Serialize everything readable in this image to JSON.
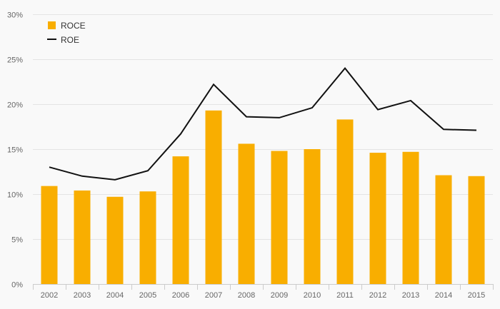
{
  "chart_data": {
    "type": "bar",
    "title": "",
    "xlabel": "",
    "ylabel": "",
    "categories": [
      "2002",
      "2003",
      "2004",
      "2005",
      "2006",
      "2007",
      "2008",
      "2009",
      "2010",
      "2011",
      "2012",
      "2013",
      "2014",
      "2015"
    ],
    "ylim": [
      0,
      30
    ],
    "yticks": [
      0,
      5,
      10,
      15,
      20,
      25,
      30
    ],
    "ytick_labels": [
      "0%",
      "5%",
      "10%",
      "15%",
      "20%",
      "25%",
      "30%"
    ],
    "grid": true,
    "legend_position": "top-left",
    "series": [
      {
        "name": "ROCE",
        "type": "bar",
        "color": "#f9ae00",
        "values": [
          10.9,
          10.4,
          9.7,
          10.3,
          14.2,
          19.3,
          15.6,
          14.8,
          15.0,
          18.3,
          14.6,
          14.7,
          12.1,
          12.0
        ]
      },
      {
        "name": "ROE",
        "type": "line",
        "color": "#111111",
        "values": [
          13.0,
          12.0,
          11.6,
          12.6,
          16.7,
          22.2,
          18.6,
          18.5,
          19.6,
          24.0,
          19.4,
          20.4,
          17.2,
          17.1
        ]
      }
    ]
  }
}
